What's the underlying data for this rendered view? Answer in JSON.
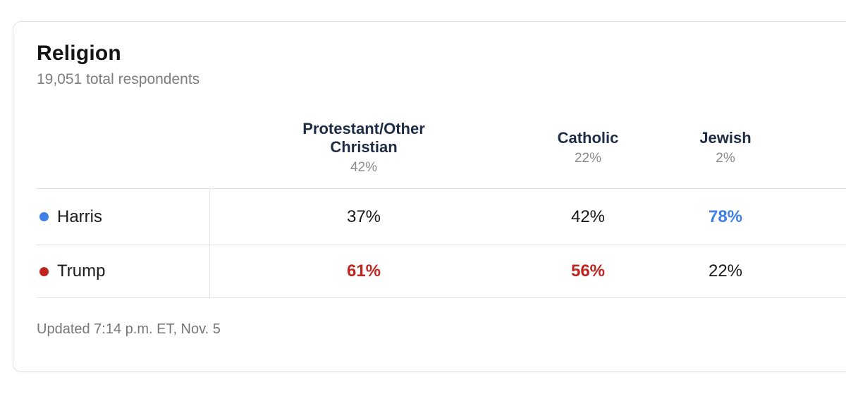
{
  "card": {
    "title": "Religion",
    "subtitle": "19,051 total respondents",
    "updated": "Updated 7:14 p.m. ET, Nov. 5"
  },
  "colors": {
    "harris_blue": "#3e7fe8",
    "trump_red": "#bf2620",
    "header_navy": "#1e2c45",
    "divider_gray": "#e4e4e4"
  },
  "chart_data": {
    "type": "table",
    "title": "Religion",
    "subtitle": "19,051 total respondents",
    "updated": "Updated 7:14 p.m. ET, Nov. 5",
    "columns": [
      {
        "label": "Protestant/Other Christian",
        "share": "42%"
      },
      {
        "label": "Catholic",
        "share": "22%"
      },
      {
        "label": "Jewish",
        "share": "2%"
      }
    ],
    "rows": [
      {
        "candidate": "Harris",
        "dot_color": "#3e7fe8",
        "values": {
          "0": "37%",
          "1": "42%",
          "2": "78%"
        },
        "highlighted": {
          "0": false,
          "1": false,
          "2": true
        }
      },
      {
        "candidate": "Trump",
        "dot_color": "#c0241f",
        "values": {
          "0": "61%",
          "1": "56%",
          "2": "22%"
        },
        "highlighted": {
          "0": true,
          "1": true,
          "2": false
        }
      }
    ]
  }
}
